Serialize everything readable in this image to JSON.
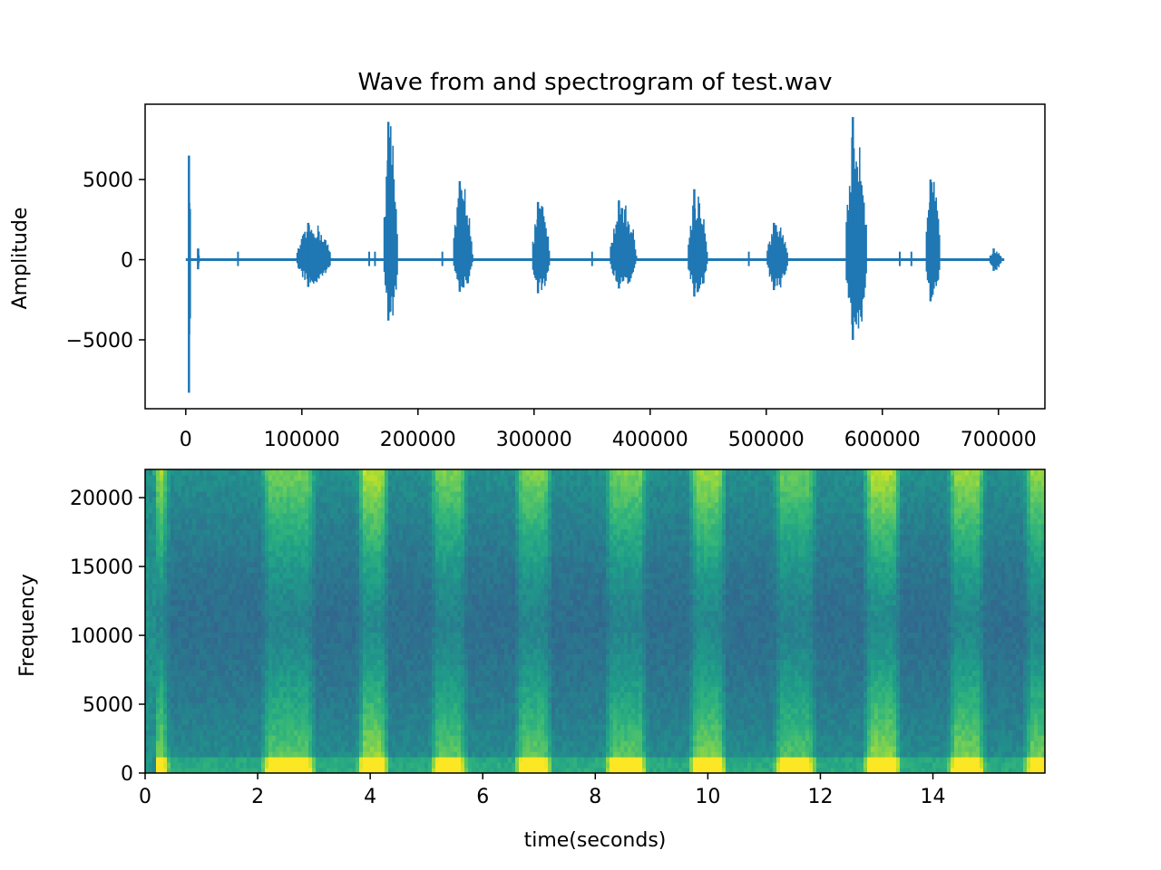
{
  "chart_data": [
    {
      "type": "line",
      "title": "Wave from and spectrogram of test.wav",
      "xlabel": "",
      "ylabel": "Amplitude",
      "xlim": [
        -35000,
        740000
      ],
      "ylim": [
        -9300,
        9700
      ],
      "x_ticks": [
        {
          "value": 0,
          "label": "0"
        },
        {
          "value": 100000,
          "label": "100000"
        },
        {
          "value": 200000,
          "label": "200000"
        },
        {
          "value": 300000,
          "label": "300000"
        },
        {
          "value": 400000,
          "label": "400000"
        },
        {
          "value": 500000,
          "label": "500000"
        },
        {
          "value": 600000,
          "label": "600000"
        },
        {
          "value": 700000,
          "label": "700000"
        }
      ],
      "y_ticks": [
        {
          "value": 5000,
          "label": "5000"
        },
        {
          "value": 0,
          "label": "0"
        },
        {
          "value": -5000,
          "label": "−5000"
        }
      ],
      "series_color": "#1f77b4",
      "x_range": [
        0,
        705000
      ],
      "bursts": [
        {
          "start": 2000,
          "end": 4500,
          "max": 6500,
          "min": -8300
        },
        {
          "start": 10000,
          "end": 12000,
          "max": 700,
          "min": -600
        },
        {
          "start": 95000,
          "end": 130000,
          "max": 2300,
          "min": -1700
        },
        {
          "start": 170000,
          "end": 185000,
          "max": 8600,
          "min": -3800
        },
        {
          "start": 230000,
          "end": 250000,
          "max": 4900,
          "min": -2000
        },
        {
          "start": 298000,
          "end": 316000,
          "max": 3600,
          "min": -2100
        },
        {
          "start": 365000,
          "end": 392000,
          "max": 3700,
          "min": -1800
        },
        {
          "start": 432000,
          "end": 452000,
          "max": 4400,
          "min": -2300
        },
        {
          "start": 500000,
          "end": 522000,
          "max": 2300,
          "min": -1900
        },
        {
          "start": 568000,
          "end": 590000,
          "max": 8900,
          "min": -5000
        },
        {
          "start": 637000,
          "end": 652000,
          "max": 5000,
          "min": -2600
        },
        {
          "start": 692000,
          "end": 705000,
          "max": 700,
          "min": -700
        }
      ]
    },
    {
      "type": "heatmap",
      "title": "",
      "xlabel": "time(seconds)",
      "ylabel": "Frequency",
      "xlim": [
        0,
        15.99
      ],
      "ylim": [
        0,
        22050
      ],
      "x_ticks": [
        {
          "value": 0,
          "label": "0"
        },
        {
          "value": 2,
          "label": "2"
        },
        {
          "value": 4,
          "label": "4"
        },
        {
          "value": 6,
          "label": "6"
        },
        {
          "value": 8,
          "label": "8"
        },
        {
          "value": 10,
          "label": "10"
        },
        {
          "value": 12,
          "label": "12"
        },
        {
          "value": 14,
          "label": "14"
        }
      ],
      "y_ticks": [
        {
          "value": 0,
          "label": "0"
        },
        {
          "value": 5000,
          "label": "5000"
        },
        {
          "value": 10000,
          "label": "10000"
        },
        {
          "value": 15000,
          "label": "15000"
        },
        {
          "value": 20000,
          "label": "20000"
        }
      ],
      "colormap": "viridis",
      "energy_segments_seconds": [
        {
          "start": 0.25,
          "end": 0.3,
          "level": 0.9
        },
        {
          "start": 2.2,
          "end": 2.9,
          "level": 0.7
        },
        {
          "start": 3.9,
          "end": 4.2,
          "level": 0.95
        },
        {
          "start": 5.2,
          "end": 5.6,
          "level": 0.7
        },
        {
          "start": 6.7,
          "end": 7.1,
          "level": 0.75
        },
        {
          "start": 8.3,
          "end": 8.8,
          "level": 0.7
        },
        {
          "start": 9.8,
          "end": 10.2,
          "level": 0.85
        },
        {
          "start": 11.3,
          "end": 11.8,
          "level": 0.65
        },
        {
          "start": 12.9,
          "end": 13.3,
          "level": 0.95
        },
        {
          "start": 14.4,
          "end": 14.8,
          "level": 0.85
        },
        {
          "start": 15.75,
          "end": 15.99,
          "level": 0.8
        }
      ]
    }
  ]
}
